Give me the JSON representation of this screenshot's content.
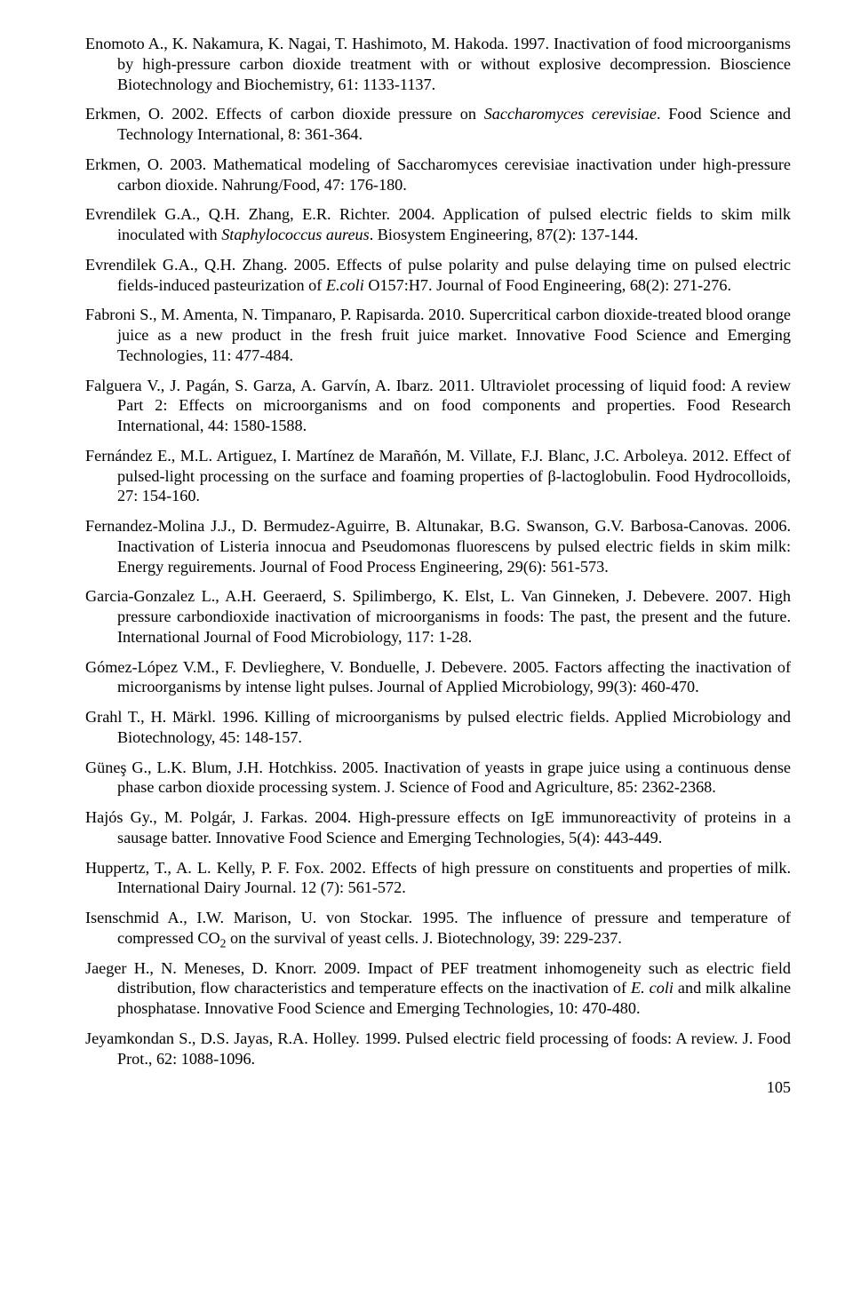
{
  "references": [
    {
      "text": "Enomoto A., K. Nakamura, K. Nagai, T. Hashimoto, M. Hakoda. 1997. Inactivation of food microorganisms by high-pressure carbon dioxide treatment with or without explosive decompression. Bioscience Biotechnology and Biochemistry, 61: 1133-1137."
    },
    {
      "prefix": "Erkmen, O. 2002. Effects of carbon dioxide pressure on ",
      "italic1": "Saccharomyces cerevisiae",
      "suffix": ". Food Science and Technology International, 8: 361-364."
    },
    {
      "text": "Erkmen, O. 2003. Mathematical modeling of Saccharomyces cerevisiae inactivation under high-pressure carbon dioxide. Nahrung/Food, 47: 176-180."
    },
    {
      "prefix": "Evrendilek G.A., Q.H. Zhang, E.R. Richter. 2004. Application of pulsed electric fields to skim milk inoculated with ",
      "italic1": "Staphylococcus aureus",
      "suffix": ". Biosystem Engineering, 87(2): 137-144."
    },
    {
      "prefix": "Evrendilek G.A., Q.H. Zhang. 2005. Effects of pulse polarity and pulse delaying time on pulsed electric fields-induced pasteurization of ",
      "italic1": "E.coli",
      "suffix": " O157:H7. Journal of Food Engineering, 68(2): 271-276."
    },
    {
      "text": "Fabroni S., M. Amenta, N. Timpanaro, P. Rapisarda. 2010. Supercritical carbon dioxide-treated blood orange juice as a new product in the fresh fruit juice market. Innovative Food Science and Emerging Technologies, 11: 477-484."
    },
    {
      "text": "Falguera V., J. Pagán, S. Garza, A. Garvín, A. Ibarz. 2011. Ultraviolet processing of liquid food: A review Part 2: Effects on microorganisms and on food components and properties. Food Research International, 44: 1580-1588."
    },
    {
      "text": "Fernández E., M.L. Artiguez, I. Martínez de Marañón, M. Villate, F.J. Blanc, J.C. Arboleya. 2012. Effect of pulsed-light processing on the surface and foaming properties of  β-lactoglobulin. Food Hydrocolloids, 27: 154-160."
    },
    {
      "text": "Fernandez-Molina J.J., D. Bermudez-Aguirre, B. Altunakar, B.G. Swanson, G.V. Barbosa-Canovas. 2006. Inactivation of Listeria innocua and Pseudomonas fluorescens by pulsed electric fields in skim milk: Energy reguirements. Journal of Food Process Engineering, 29(6): 561-573."
    },
    {
      "text": "Garcia-Gonzalez L., A.H. Geeraerd, S. Spilimbergo, K. Elst, L. Van Ginneken, J. Debevere. 2007. High pressure carbondioxide inactivation of microorganisms in foods: The past, the present and the future. International Journal of Food Microbiology, 117: 1-28."
    },
    {
      "text": "Gómez-López V.M., F. Devlieghere, V. Bonduelle, J. Debevere. 2005. Factors affecting the inactivation of microorganisms by intense light pulses. Journal of Applied Microbiology, 99(3): 460-470."
    },
    {
      "text": "Grahl T., H. Märkl. 1996. Killing of microorganisms by pulsed electric fields. Applied Microbiology and Biotechnology, 45: 148-157."
    },
    {
      "text": "Güneş G., L.K. Blum, J.H. Hotchkiss. 2005. Inactivation of yeasts in grape juice using a continuous dense phase carbon dioxide processing system. J. Science of Food and Agriculture, 85: 2362-2368."
    },
    {
      "text": "Hajós Gy., M. Polgár, J. Farkas. 2004. High-pressure effects on IgE immunoreactivity of proteins in a sausage batter. Innovative Food Science and Emerging Technologies, 5(4): 443-449."
    },
    {
      "text": "Huppertz, T., A. L. Kelly, P. F. Fox. 2002. Effects of high pressure on constituents and properties of milk. International Dairy Journal. 12 (7): 561-572."
    },
    {
      "co2_prefix": "Isenschmid A., I.W. Marison, U. von Stockar. 1995. The influence of pressure and temperature of compressed CO",
      "co2_suffix": " on the survival of yeast cells. J. Biotechnology, 39: 229-237."
    },
    {
      "prefix": "Jaeger H., N. Meneses, D. Knorr. 2009. Impact of PEF treatment inhomogeneity such as electric field distribution, flow characteristics and temperature effects on the inactivation of ",
      "italic1": "E. coli",
      "suffix": " and milk alkaline phosphatase. Innovative Food Science and Emerging Technologies, 10: 470-480."
    },
    {
      "text": "Jeyamkondan S., D.S. Jayas, R.A. Holley. 1999. Pulsed electric field processing of foods: A review. J. Food Prot., 62: 1088-1096."
    }
  ],
  "pageNumber": "105"
}
